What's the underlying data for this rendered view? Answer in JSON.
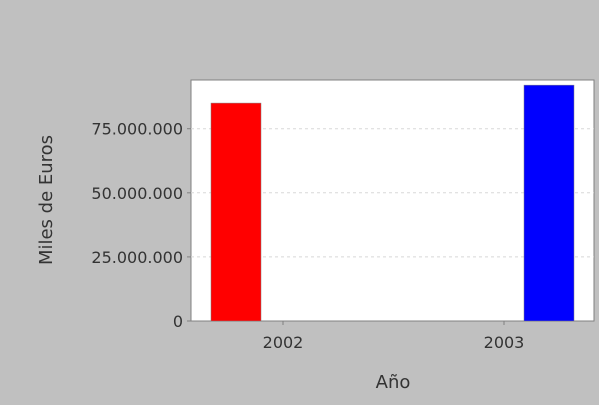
{
  "chart_data": {
    "type": "bar",
    "title": "",
    "xlabel": "Año",
    "ylabel": "Miles de Euros",
    "categories": [
      "2002",
      "2003"
    ],
    "series": [
      {
        "values": [
          85000000,
          null
        ],
        "color": "#ff0000"
      },
      {
        "values": [
          null,
          92000000
        ],
        "color": "#0000ff"
      }
    ],
    "ylim": [
      0,
      94000000
    ],
    "yticks": [
      0,
      25000000,
      50000000,
      75000000
    ],
    "ytick_labels": [
      "0",
      "25.000.000",
      "50.000.000",
      "75.000.000"
    ],
    "grid": true,
    "legend": "none",
    "background_color": "#c0c0c0",
    "plot_background_color": "#ffffff"
  }
}
